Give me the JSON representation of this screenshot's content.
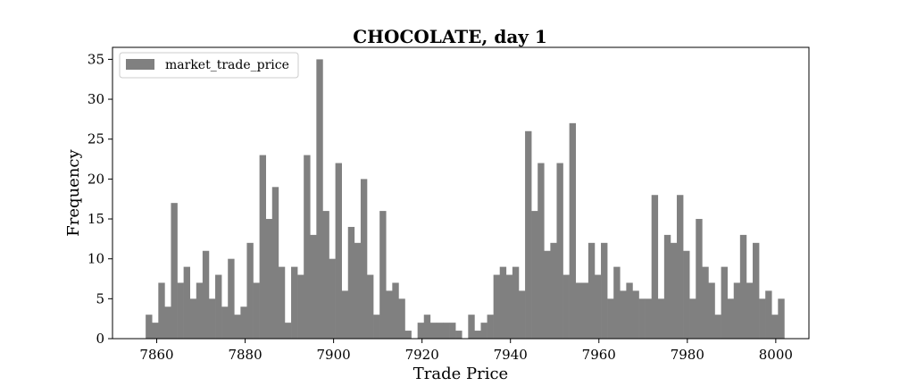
{
  "chart_data": {
    "type": "bar",
    "title": "CHOCOLATE, day 1",
    "xlabel": "Trade Price",
    "ylabel": "Frequency",
    "xlim": [
      7850,
      8007.5
    ],
    "ylim": [
      0,
      36.5
    ],
    "xticks": [
      7860,
      7880,
      7900,
      7920,
      7940,
      7960,
      7980,
      8000
    ],
    "yticks": [
      0,
      5,
      10,
      15,
      20,
      25,
      30,
      35
    ],
    "grid": false,
    "legend": "top-left",
    "bin_start": 7857.5,
    "bin_width": 1.43,
    "bar_color": "#808080",
    "series": [
      {
        "name": "market_trade_price",
        "values": [
          3,
          2,
          7,
          4,
          17,
          7,
          9,
          5,
          7,
          11,
          5,
          8,
          4,
          10,
          3,
          4,
          12,
          7,
          23,
          15,
          19,
          9,
          2,
          9,
          8,
          23,
          13,
          35,
          16,
          10,
          22,
          6,
          14,
          12,
          20,
          8,
          3,
          16,
          6,
          7,
          5,
          1,
          0,
          2,
          3,
          2,
          2,
          2,
          2,
          1,
          0,
          3,
          1,
          2,
          3,
          8,
          9,
          8,
          9,
          6,
          26,
          16,
          22,
          11,
          12,
          22,
          8,
          27,
          7,
          7,
          12,
          8,
          12,
          5,
          9,
          6,
          7,
          6,
          5,
          5,
          18,
          5,
          13,
          12,
          18,
          11,
          5,
          15,
          9,
          7,
          3,
          9,
          5,
          7,
          13,
          7,
          12,
          5,
          6,
          3,
          5
        ]
      }
    ]
  }
}
